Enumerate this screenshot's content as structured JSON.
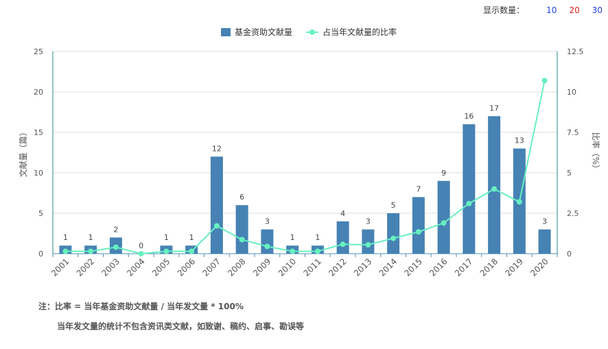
{
  "controls": {
    "label": "显示数量：",
    "options": [
      {
        "text": "10",
        "color": "#1f3fdf"
      },
      {
        "text": "20",
        "color": "#e02020"
      },
      {
        "text": "30",
        "color": "#1f3fdf"
      }
    ]
  },
  "notes": {
    "line1": "注：比率 = 当年基金资助文献量 / 当年发文量 * 100%",
    "line2": "当年发文量的统计不包含资讯类文献，如致谢、稿约、启事、勘误等"
  },
  "chart_data": {
    "type": "bar+line",
    "categories": [
      "2001",
      "2002",
      "2003",
      "2004",
      "2005",
      "2006",
      "2007",
      "2008",
      "2009",
      "2010",
      "2011",
      "2012",
      "2013",
      "2014",
      "2015",
      "2016",
      "2017",
      "2018",
      "2019",
      "2020"
    ],
    "series": [
      {
        "name": "基金资助文献量",
        "type": "bar",
        "axis": "left",
        "color": "#4682b4",
        "values": [
          1,
          1,
          2,
          0,
          1,
          1,
          12,
          6,
          3,
          1,
          1,
          4,
          3,
          5,
          7,
          9,
          16,
          17,
          13,
          3
        ]
      },
      {
        "name": "占当年文献量的比率",
        "type": "line",
        "axis": "right",
        "color": "#66f0c0",
        "values": [
          0.15,
          0.15,
          0.4,
          0,
          0.15,
          0.15,
          1.72,
          0.87,
          0.45,
          0.15,
          0.15,
          0.58,
          0.55,
          0.95,
          1.35,
          1.9,
          3.1,
          4.0,
          3.2,
          10.7
        ]
      }
    ],
    "ylabel": "文献量（篇）",
    "y2label": "比率（%）",
    "ylim": [
      0,
      25
    ],
    "y2lim": [
      0,
      12.5
    ],
    "yticks": [
      "0",
      "5",
      "10",
      "15",
      "20",
      "25"
    ],
    "y2ticks": [
      "0",
      "2.5",
      "5",
      "7.5",
      "10",
      "12.5"
    ],
    "legend_position": "top-center",
    "grid": true
  }
}
